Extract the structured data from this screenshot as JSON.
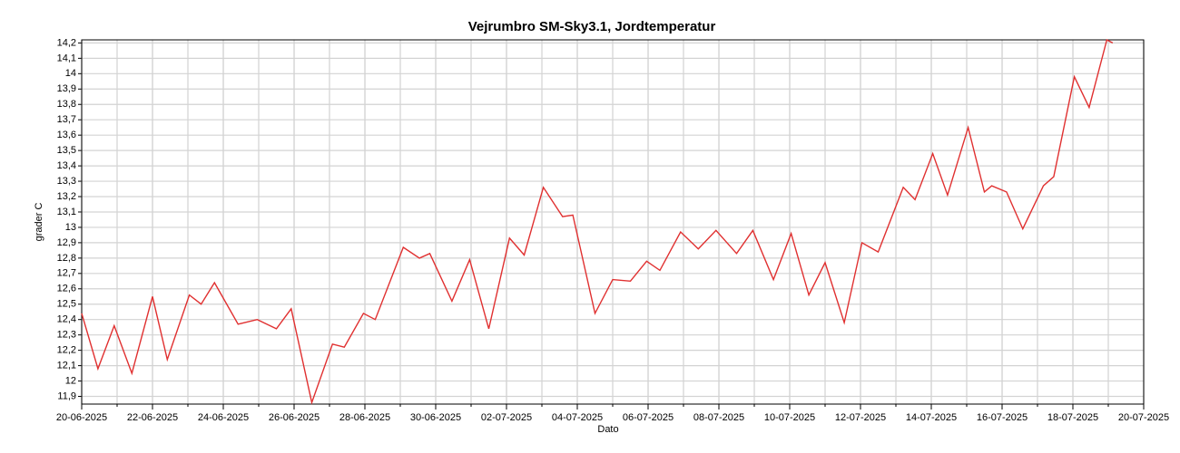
{
  "chart_data": {
    "type": "line",
    "title": "Vejrumbro SM-Sky3.1, Jordtemperatur",
    "x_label": "Dato",
    "y_label": "grader C",
    "color": "#e03030",
    "grid": true,
    "x": [
      "2025-06-20 00:00",
      "2025-06-20 11:00",
      "2025-06-20 22:00",
      "2025-06-21 10:00",
      "2025-06-22 00:00",
      "2025-06-22 10:00",
      "2025-06-23 01:00",
      "2025-06-23 09:00",
      "2025-06-23 18:00",
      "2025-06-24 10:00",
      "2025-06-24 23:00",
      "2025-06-25 12:00",
      "2025-06-25 22:00",
      "2025-06-26 12:00",
      "2025-06-27 02:00",
      "2025-06-27 10:00",
      "2025-06-27 23:00",
      "2025-06-28 07:00",
      "2025-06-29 02:00",
      "2025-06-29 13:00",
      "2025-06-29 20:00",
      "2025-06-30 11:00",
      "2025-06-30 23:00",
      "2025-07-01 12:00",
      "2025-07-02 02:00",
      "2025-07-02 12:00",
      "2025-07-03 01:00",
      "2025-07-03 14:00",
      "2025-07-03 21:00",
      "2025-07-04 12:00",
      "2025-07-05 00:00",
      "2025-07-05 12:00",
      "2025-07-05 23:00",
      "2025-07-06 08:00",
      "2025-07-06 22:00",
      "2025-07-07 10:00",
      "2025-07-07 22:00",
      "2025-07-08 12:00",
      "2025-07-08 23:00",
      "2025-07-09 13:00",
      "2025-07-10 01:00",
      "2025-07-10 13:00",
      "2025-07-11 00:00",
      "2025-07-11 13:00",
      "2025-07-12 01:00",
      "2025-07-12 12:00",
      "2025-07-13 05:00",
      "2025-07-13 13:00",
      "2025-07-14 01:00",
      "2025-07-14 11:00",
      "2025-07-15 01:00",
      "2025-07-15 12:00",
      "2025-07-15 17:00",
      "2025-07-16 03:00",
      "2025-07-16 14:00",
      "2025-07-17 04:00",
      "2025-07-17 11:00",
      "2025-07-18 01:00",
      "2025-07-18 11:00",
      "2025-07-18 23:00",
      "2025-07-19 03:00"
    ],
    "values": [
      12.44,
      12.08,
      12.36,
      12.05,
      12.55,
      12.14,
      12.56,
      12.5,
      12.64,
      12.37,
      12.4,
      12.34,
      12.47,
      11.86,
      12.24,
      12.22,
      12.44,
      12.4,
      12.87,
      12.8,
      12.83,
      12.52,
      12.79,
      12.34,
      12.93,
      12.82,
      13.26,
      13.07,
      13.08,
      12.44,
      12.66,
      12.65,
      12.78,
      12.72,
      12.97,
      12.86,
      12.98,
      12.83,
      12.98,
      12.66,
      12.96,
      12.56,
      12.77,
      12.38,
      12.9,
      12.84,
      13.26,
      13.18,
      13.48,
      13.21,
      13.65,
      13.23,
      13.27,
      13.23,
      12.99,
      13.27,
      13.33,
      13.98,
      13.78,
      14.22,
      14.2
    ],
    "xlim": [
      "2025-06-20 00:00",
      "2025-07-20 00:00"
    ],
    "xticks": [
      {
        "value": "2025-06-20 00:00",
        "label": "20-06-2025"
      },
      {
        "value": "2025-06-22 00:00",
        "label": "22-06-2025"
      },
      {
        "value": "2025-06-24 00:00",
        "label": "24-06-2025"
      },
      {
        "value": "2025-06-26 00:00",
        "label": "26-06-2025"
      },
      {
        "value": "2025-06-28 00:00",
        "label": "28-06-2025"
      },
      {
        "value": "2025-06-30 00:00",
        "label": "30-06-2025"
      },
      {
        "value": "2025-07-02 00:00",
        "label": "02-07-2025"
      },
      {
        "value": "2025-07-04 00:00",
        "label": "04-07-2025"
      },
      {
        "value": "2025-07-06 00:00",
        "label": "06-07-2025"
      },
      {
        "value": "2025-07-08 00:00",
        "label": "08-07-2025"
      },
      {
        "value": "2025-07-10 00:00",
        "label": "10-07-2025"
      },
      {
        "value": "2025-07-12 00:00",
        "label": "12-07-2025"
      },
      {
        "value": "2025-07-14 00:00",
        "label": "14-07-2025"
      },
      {
        "value": "2025-07-16 00:00",
        "label": "16-07-2025"
      },
      {
        "value": "2025-07-18 00:00",
        "label": "18-07-2025"
      },
      {
        "value": "2025-07-20 00:00",
        "label": "20-07-2025"
      }
    ],
    "ylim": [
      11.85,
      14.22
    ],
    "yticks": [
      {
        "value": 11.9,
        "label": "11,9"
      },
      12,
      {
        "value": 12.1,
        "label": "12,1"
      },
      {
        "value": 12.2,
        "label": "12,2"
      },
      {
        "value": 12.3,
        "label": "12,3"
      },
      {
        "value": 12.4,
        "label": "12,4"
      },
      {
        "value": 12.5,
        "label": "12,5"
      },
      {
        "value": 12.6,
        "label": "12,6"
      },
      {
        "value": 12.7,
        "label": "12,7"
      },
      {
        "value": 12.8,
        "label": "12,8"
      },
      {
        "value": 12.9,
        "label": "12,9"
      },
      13,
      {
        "value": 13.1,
        "label": "13,1"
      },
      {
        "value": 13.2,
        "label": "13,2"
      },
      {
        "value": 13.3,
        "label": "13,3"
      },
      {
        "value": 13.4,
        "label": "13,4"
      },
      {
        "value": 13.5,
        "label": "13,5"
      },
      {
        "value": 13.6,
        "label": "13,6"
      },
      {
        "value": 13.7,
        "label": "13,7"
      },
      {
        "value": 13.8,
        "label": "13,8"
      },
      {
        "value": 13.9,
        "label": "13,9"
      },
      14,
      {
        "value": 14.1,
        "label": "14,1"
      },
      {
        "value": 14.2,
        "label": "14,2"
      }
    ]
  }
}
